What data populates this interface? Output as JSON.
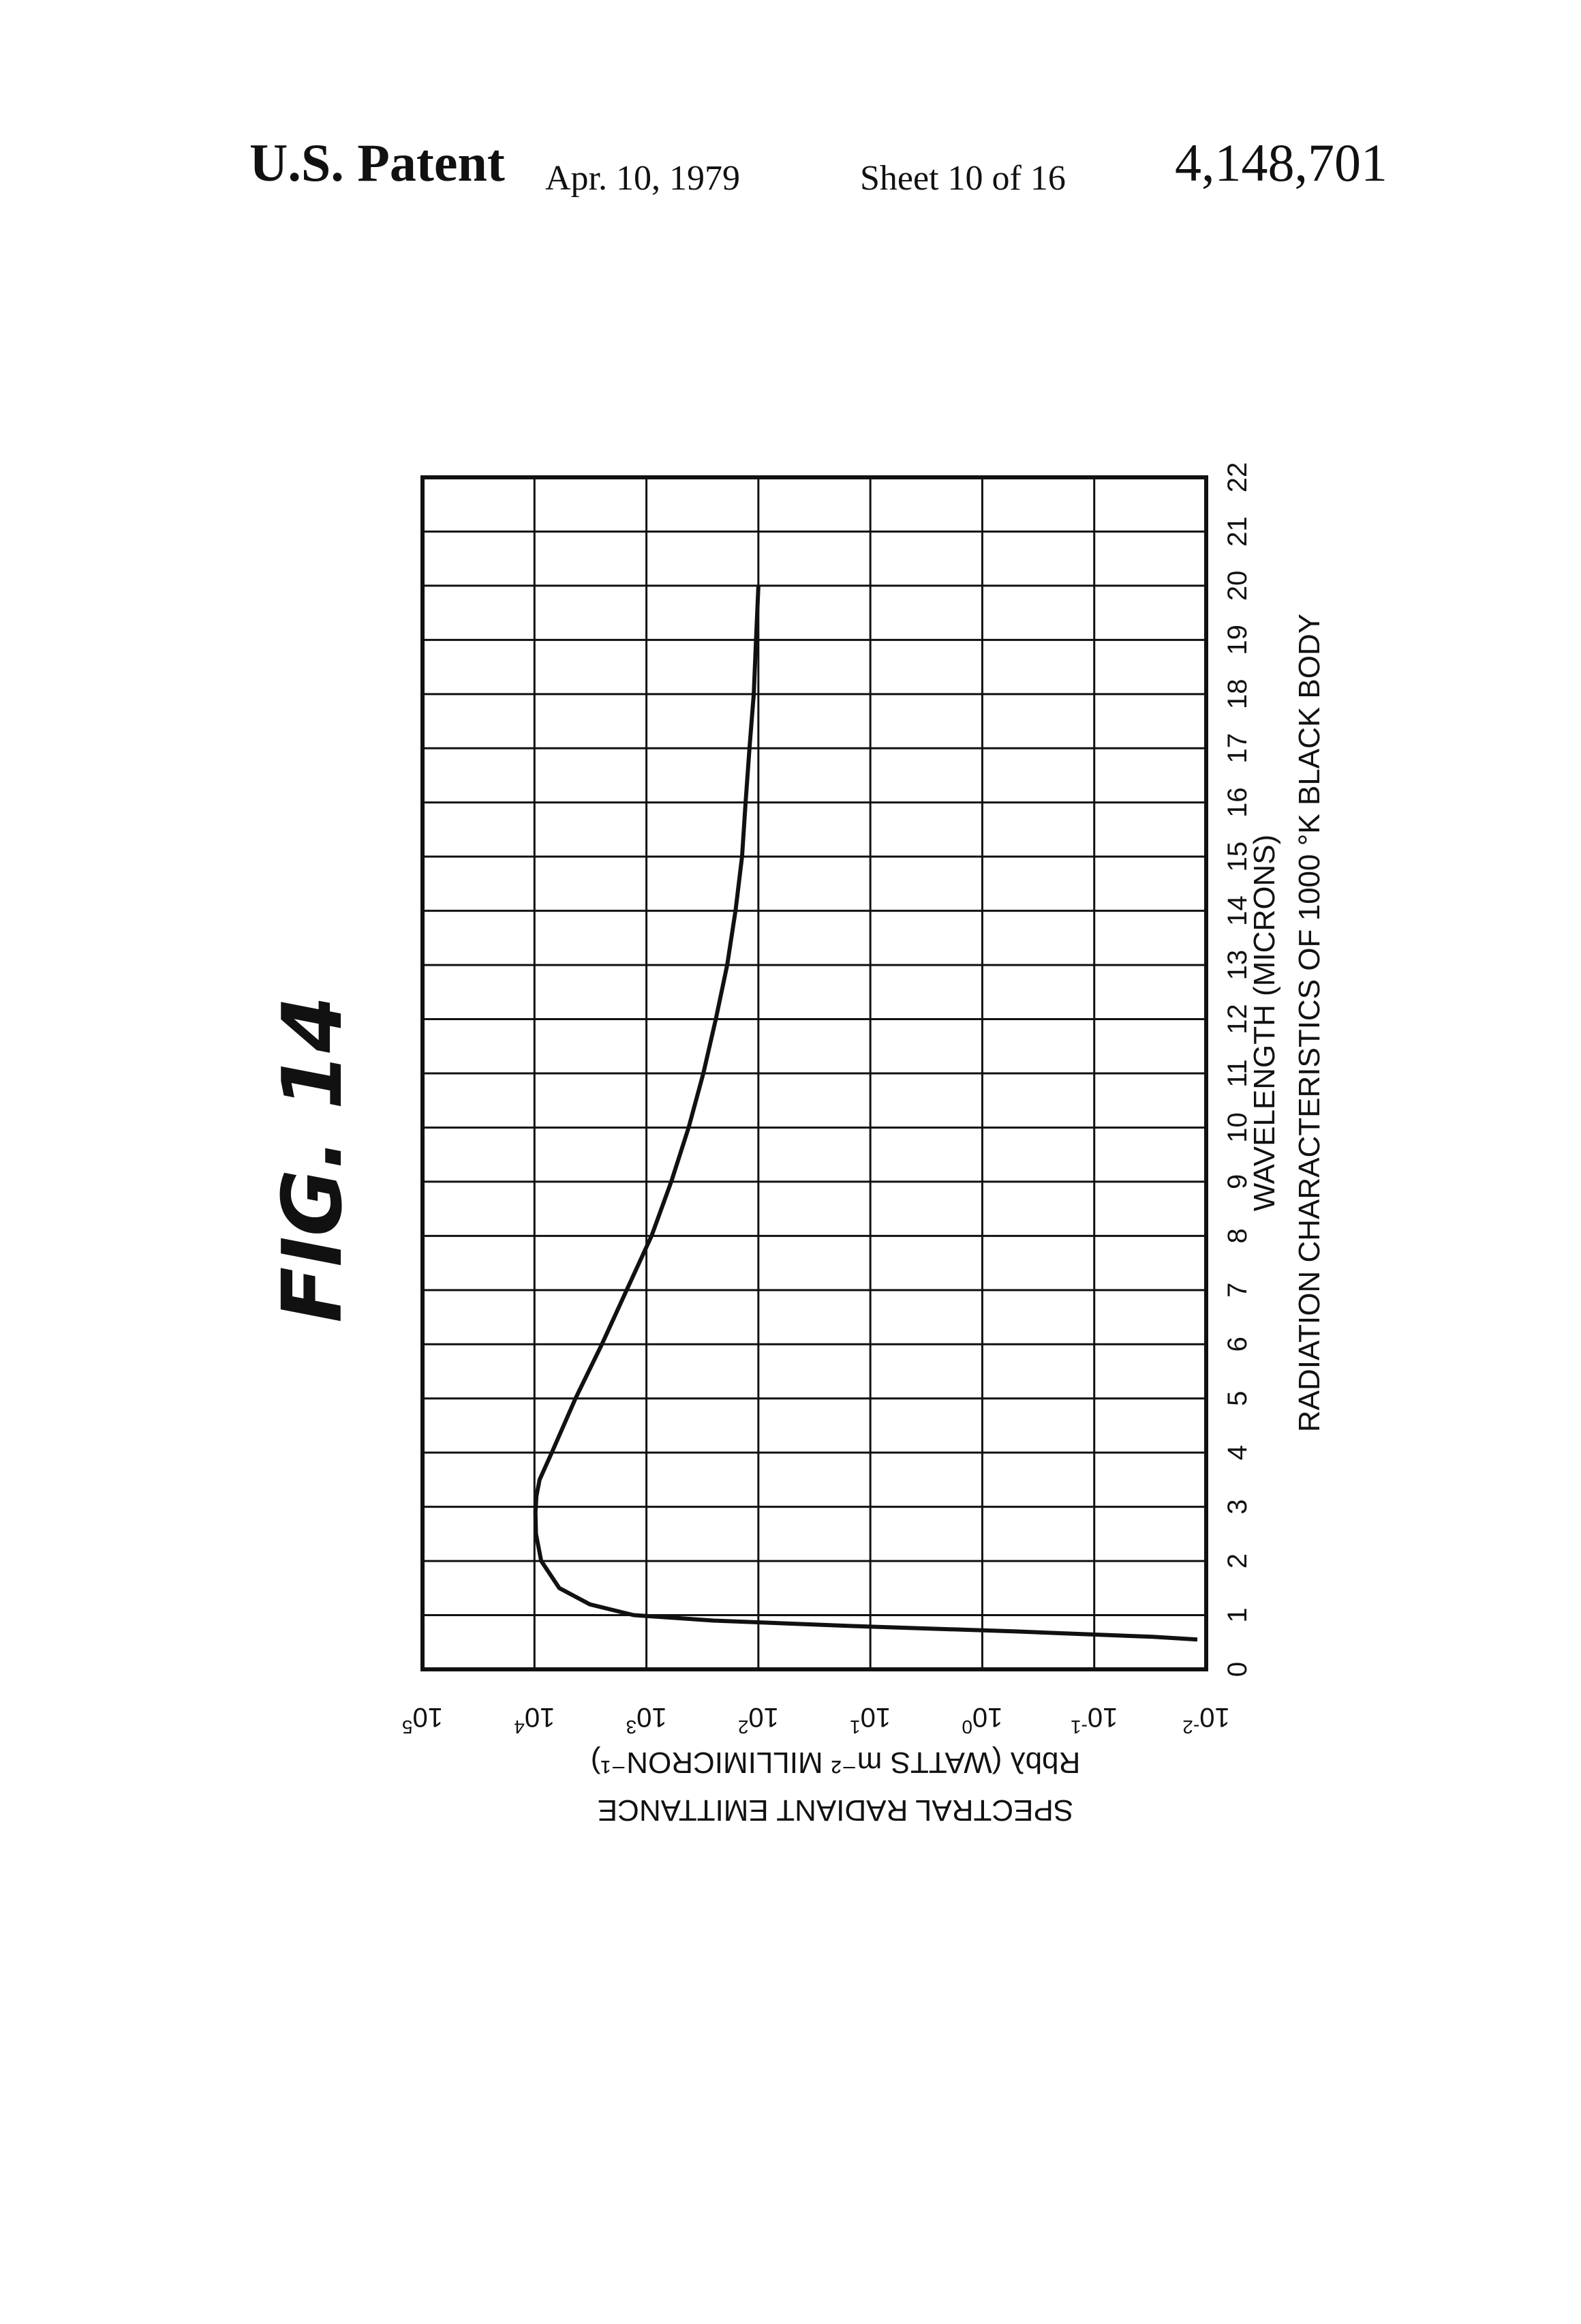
{
  "header": {
    "patent_label": "U.S. Patent",
    "date": "Apr. 10, 1979",
    "sheet": "Sheet 10 of 16",
    "patent_number": "4,148,701"
  },
  "figure_label": "FIG. 14",
  "chart_data": {
    "type": "line",
    "title": "RADIATION CHARACTERISTICS OF 1000 °K BLACK BODY",
    "xlabel": "WAVELENGTH (MICRONS)",
    "ylabel": "SPECTRAL RADIANT EMITTANCE",
    "ylabel_line2": "Rbbλ (WATTS m⁻² MILLIMICRON⁻¹)",
    "xlim": [
      0,
      22
    ],
    "ylim_exponent": [
      -2,
      5
    ],
    "y_scale": "log",
    "orientation": "rotated 90° (wavelength axis runs bottom to top, emittance axis runs right to left)",
    "grid": true,
    "x_ticks": [
      "0",
      "1",
      "2",
      "3",
      "4",
      "5",
      "6",
      "7",
      "8",
      "9",
      "10",
      "11",
      "12",
      "13",
      "14",
      "15",
      "16",
      "17",
      "18",
      "19",
      "20",
      "21",
      "22"
    ],
    "y_ticks": [
      {
        "base": "10",
        "exp": "-2"
      },
      {
        "base": "10",
        "exp": "-1"
      },
      {
        "base": "10",
        "exp": "0"
      },
      {
        "base": "10",
        "exp": "1"
      },
      {
        "base": "10",
        "exp": "2"
      },
      {
        "base": "10",
        "exp": "3"
      },
      {
        "base": "10",
        "exp": "4"
      },
      {
        "base": "10",
        "exp": "5"
      }
    ],
    "series": [
      {
        "x": [
          0.55,
          0.6,
          0.7,
          0.8,
          0.9,
          1.0,
          1.2,
          1.5,
          2.0,
          2.5,
          2.9,
          3.2,
          3.5,
          4.0,
          5.0,
          6.0,
          7.0,
          8.0,
          9.0,
          10.0,
          11.0,
          12.0,
          13.0,
          14.0,
          15.0,
          16.0,
          17.0,
          18.0,
          19.0,
          20.0
        ],
        "y": [
          0.012,
          0.03,
          0.5,
          15,
          250,
          1300,
          3200,
          6000,
          8700,
          9700,
          9800,
          9600,
          9000,
          7000,
          4300,
          2500,
          1500,
          900,
          600,
          420,
          310,
          240,
          190,
          160,
          140,
          130,
          120,
          110,
          105,
          100
        ]
      }
    ]
  }
}
